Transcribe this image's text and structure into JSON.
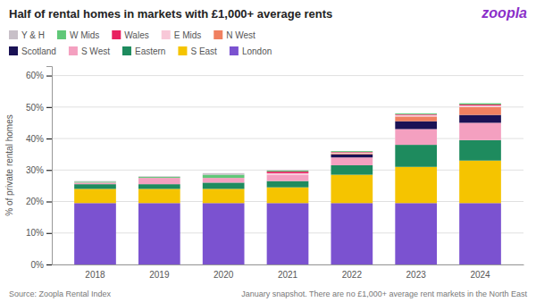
{
  "chart_data": {
    "type": "bar",
    "stacked": true,
    "title": "Half of rental homes in markets with £1,000+ average rents",
    "y_label": "% of private rental homes",
    "categories": [
      "2018",
      "2019",
      "2020",
      "2021",
      "2022",
      "2023",
      "2024"
    ],
    "series": [
      {
        "name": "London",
        "color": "#7B52D0",
        "values": [
          19.5,
          19.5,
          19.5,
          19.5,
          19.5,
          19.5,
          19.5
        ]
      },
      {
        "name": "S East",
        "color": "#F5C400",
        "values": [
          4.5,
          4.5,
          4.5,
          5.0,
          9.0,
          11.5,
          13.5
        ]
      },
      {
        "name": "Eastern",
        "color": "#1E8B5E",
        "values": [
          1.5,
          1.5,
          2.0,
          2.0,
          3.0,
          7.0,
          6.5
        ]
      },
      {
        "name": "S West",
        "color": "#F4A0C0",
        "values": [
          0.5,
          2.0,
          1.5,
          2.0,
          2.5,
          5.0,
          5.5
        ]
      },
      {
        "name": "Scotland",
        "color": "#1A1255",
        "values": [
          0.0,
          0.0,
          0.0,
          0.0,
          1.0,
          2.5,
          2.5
        ]
      },
      {
        "name": "N West",
        "color": "#F08060",
        "values": [
          0.0,
          0.0,
          0.0,
          0.0,
          0.3,
          1.5,
          2.5
        ]
      },
      {
        "name": "E Mids",
        "color": "#F8C8D8",
        "values": [
          0.0,
          0.0,
          0.0,
          0.5,
          0.2,
          0.5,
          0.5
        ]
      },
      {
        "name": "Wales",
        "color": "#E82060",
        "values": [
          0.0,
          0.0,
          0.0,
          0.5,
          0.2,
          0.2,
          0.3
        ]
      },
      {
        "name": "W Mids",
        "color": "#60C878",
        "values": [
          0.3,
          0.3,
          1.0,
          0.3,
          0.3,
          0.3,
          0.4
        ]
      },
      {
        "name": "Y & H",
        "color": "#C8C0C8",
        "values": [
          0.2,
          0.2,
          0.5,
          0.2,
          0.0,
          0.0,
          0.0
        ]
      }
    ],
    "ylim": [
      0,
      63
    ],
    "yticks": [
      {
        "value": 0,
        "label": "0%"
      },
      {
        "value": 10,
        "label": "10%"
      },
      {
        "value": 20,
        "label": "20%"
      },
      {
        "value": 30,
        "label": "30%"
      },
      {
        "value": 40,
        "label": "40%"
      },
      {
        "value": 50,
        "label": "50%"
      },
      {
        "value": 60,
        "label": "60%"
      }
    ],
    "grid": true,
    "legend": "top",
    "annotations": [
      {
        "text": "zoopla",
        "color": "#8B2FC9"
      },
      {
        "text": "Source: Zoopla Rental Index"
      },
      {
        "text": "January snapshot. There are no £1,000+ average rent markets in the North East"
      }
    ]
  }
}
